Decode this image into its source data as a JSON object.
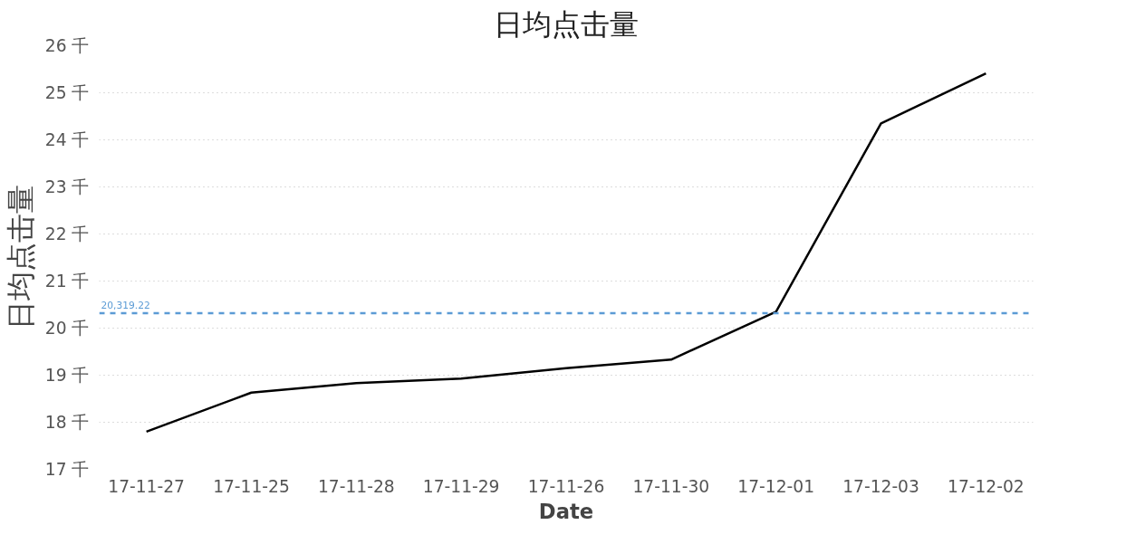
{
  "chart_data": {
    "type": "line",
    "title": "日均点击量",
    "xlabel": "Date",
    "ylabel": "日均点击量",
    "categories": [
      "17-11-27",
      "17-11-25",
      "17-11-28",
      "17-11-29",
      "17-11-26",
      "17-11-30",
      "17-12-01",
      "17-12-03",
      "17-12-02"
    ],
    "series": [
      {
        "color": "#000000",
        "values": [
          17.8,
          18.63,
          18.83,
          18.93,
          19.15,
          19.33,
          20.35,
          24.35,
          25.41
        ]
      }
    ],
    "ylim": [
      17,
      26
    ],
    "yticks": [
      {
        "value": 17,
        "label": "17 千"
      },
      {
        "value": 18,
        "label": "18 千"
      },
      {
        "value": 19,
        "label": "19 千"
      },
      {
        "value": 20,
        "label": "20 千"
      },
      {
        "value": 21,
        "label": "21 千"
      },
      {
        "value": 22,
        "label": "22 千"
      },
      {
        "value": 23,
        "label": "23 千"
      },
      {
        "value": 24,
        "label": "24 千"
      },
      {
        "value": 25,
        "label": "25 千"
      },
      {
        "value": 26,
        "label": "26 千"
      }
    ],
    "ref_lines": [
      {
        "axis": "y",
        "value": 20.31922,
        "label": "20,319.22",
        "color": "#5b9bd5",
        "line_style": "dashed"
      }
    ],
    "grid": "y",
    "marker": "none",
    "line_style": "solid"
  }
}
